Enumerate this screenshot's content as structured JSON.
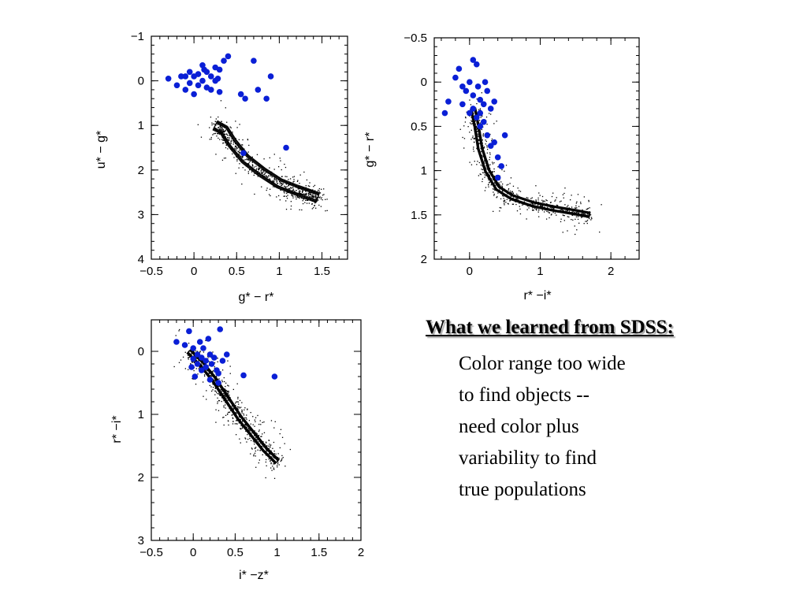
{
  "chart_data": [
    {
      "type": "scatter",
      "xlabel": "g* − r*",
      "ylabel": "u* − g*",
      "xlim": [
        -0.5,
        1.8
      ],
      "ylim": [
        4,
        -1
      ],
      "x_ticks": [
        "−0.5",
        "0",
        "0.5",
        "1",
        "1.5"
      ],
      "y_ticks": [
        "−1",
        "0",
        "1",
        "2",
        "3",
        "4"
      ],
      "series": [
        {
          "values": [
            [
              -0.3,
              -0.05
            ],
            [
              -0.2,
              0.1
            ],
            [
              -0.15,
              -0.1
            ],
            [
              -0.1,
              0.2
            ],
            [
              -0.05,
              0.05
            ],
            [
              0,
              -0.1
            ],
            [
              0.05,
              0.1
            ],
            [
              0.1,
              0.0
            ],
            [
              0.15,
              -0.2
            ],
            [
              0.2,
              -0.1
            ],
            [
              0.25,
              -0.3
            ],
            [
              0.3,
              -0.25
            ],
            [
              0.35,
              -0.45
            ],
            [
              0.4,
              -0.55
            ],
            [
              0.1,
              -0.35
            ],
            [
              0.2,
              0.2
            ],
            [
              0.3,
              0.25
            ],
            [
              0.05,
              -0.15
            ],
            [
              -0.05,
              -0.2
            ],
            [
              0.15,
              0.15
            ],
            [
              0.25,
              0.0
            ],
            [
              0.55,
              0.3
            ],
            [
              0.6,
              0.4
            ],
            [
              0.7,
              -0.45
            ],
            [
              0.75,
              0.2
            ],
            [
              0.9,
              -0.1
            ],
            [
              0.85,
              0.4
            ],
            [
              1.08,
              1.5
            ],
            [
              0.58,
              1.62
            ],
            [
              0.0,
              0.3
            ],
            [
              -0.1,
              -0.1
            ],
            [
              0.12,
              -0.25
            ],
            [
              0.28,
              -0.05
            ]
          ]
        }
      ]
    },
    {
      "type": "scatter",
      "xlabel": "r* −i*",
      "ylabel": "g* − r*",
      "xlim": [
        -0.5,
        2.4
      ],
      "ylim": [
        2,
        -0.5
      ],
      "x_ticks": [
        "0",
        "1",
        "2"
      ],
      "y_ticks": [
        "−0.5",
        "0",
        "0.5",
        "1",
        "1.5",
        "2"
      ],
      "series": [
        {
          "values": [
            [
              -0.35,
              0.35
            ],
            [
              -0.3,
              0.22
            ],
            [
              -0.2,
              -0.05
            ],
            [
              -0.15,
              -0.15
            ],
            [
              -0.1,
              0.05
            ],
            [
              -0.05,
              0.1
            ],
            [
              0,
              0.0
            ],
            [
              0.05,
              0.15
            ],
            [
              0.1,
              -0.2
            ],
            [
              0.12,
              0.05
            ],
            [
              0.15,
              0.2
            ],
            [
              0.2,
              0.25
            ],
            [
              0.25,
              0.1
            ],
            [
              0.3,
              0.3
            ],
            [
              0.35,
              0.22
            ],
            [
              0.05,
              0.3
            ],
            [
              0.1,
              0.4
            ],
            [
              0.15,
              0.5
            ],
            [
              0.2,
              0.45
            ],
            [
              0.25,
              0.6
            ],
            [
              0.3,
              0.72
            ],
            [
              0.35,
              0.68
            ],
            [
              0.4,
              0.85
            ],
            [
              0.45,
              0.95
            ],
            [
              0.4,
              1.08
            ],
            [
              0.5,
              0.6
            ],
            [
              0.05,
              -0.25
            ],
            [
              -0.1,
              0.25
            ],
            [
              0.0,
              0.35
            ],
            [
              0.15,
              0.35
            ],
            [
              0.22,
              0.0
            ]
          ]
        }
      ]
    },
    {
      "type": "scatter",
      "xlabel": "i* −z*",
      "ylabel": "r* −i*",
      "xlim": [
        -0.5,
        2.0
      ],
      "ylim": [
        3,
        -0.5
      ],
      "x_ticks": [
        "−0.5",
        "0",
        "0.5",
        "1",
        "1.5",
        "2"
      ],
      "y_ticks": [
        "0",
        "1",
        "2",
        "3"
      ],
      "series": [
        {
          "values": [
            [
              -0.2,
              -0.15
            ],
            [
              -0.1,
              -0.1
            ],
            [
              -0.05,
              -0.32
            ],
            [
              0,
              -0.05
            ],
            [
              0.05,
              0.05
            ],
            [
              0.08,
              -0.15
            ],
            [
              0.1,
              0.1
            ],
            [
              0.12,
              -0.05
            ],
            [
              0.15,
              0.15
            ],
            [
              0.18,
              -0.2
            ],
            [
              0.2,
              0.05
            ],
            [
              0.22,
              0.2
            ],
            [
              0.25,
              0.1
            ],
            [
              0.28,
              0.3
            ],
            [
              0.3,
              0.35
            ],
            [
              0.32,
              -0.35
            ],
            [
              0.35,
              0.15
            ],
            [
              0.4,
              0.05
            ],
            [
              0.05,
              0.2
            ],
            [
              0.02,
              0.4
            ],
            [
              0.1,
              0.3
            ],
            [
              0.15,
              0.25
            ],
            [
              0.2,
              0.45
            ],
            [
              0.0,
              0.12
            ],
            [
              0.6,
              0.38
            ],
            [
              0.97,
              0.4
            ],
            [
              0.3,
              0.5
            ],
            [
              -0.02,
              0.25
            ]
          ]
        }
      ]
    }
  ],
  "text": {
    "heading": "What we learned from SDSS",
    "heading_suffix": ":",
    "body": "Color range too wide\nto find objects --\nneed color plus\nvariability to find\ntrue populations"
  }
}
